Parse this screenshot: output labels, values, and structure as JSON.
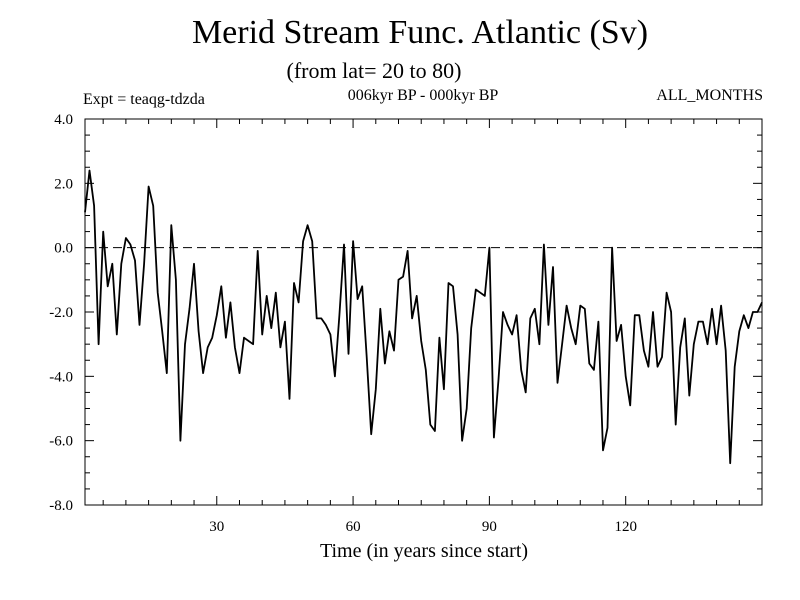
{
  "header": {
    "title": "Merid Stream Func. Atlantic (Sv)",
    "subtitle": "(from lat= 20 to 80)",
    "expt": "Expt = teaqg-tdzda",
    "period": "006kyr BP - 000kyr BP",
    "months": "ALL_MONTHS"
  },
  "chart_data": {
    "type": "line",
    "title": "Merid Stream Func. Atlantic (Sv)",
    "subtitle": "(from lat= 20 to 80)",
    "xlabel": "Time (in years since start)",
    "ylabel": "",
    "xlim": [
      1,
      150
    ],
    "ylim": [
      -8,
      4
    ],
    "xticks": [
      30,
      60,
      90,
      120
    ],
    "xtick_labels": [
      "30",
      "60",
      "90",
      "120"
    ],
    "yticks": [
      4,
      2,
      0,
      -2,
      -4,
      -6,
      -8
    ],
    "ytick_labels": [
      "4.0",
      "2.0",
      "0.0",
      "-2.0",
      "-4.0",
      "-6.0",
      "-8.0"
    ],
    "reference_line": {
      "y": 0,
      "style": "dashed"
    },
    "grid": false,
    "series": [
      {
        "x": [
          1,
          2,
          3,
          4,
          5,
          6,
          7,
          8,
          9,
          10,
          11,
          12,
          13,
          14,
          15,
          16,
          17,
          18,
          19,
          20,
          21,
          22,
          23,
          24,
          25,
          26,
          27,
          28,
          29,
          30,
          31,
          32,
          33,
          34,
          35,
          36,
          37,
          38,
          39,
          40,
          41,
          42,
          43,
          44,
          45,
          46,
          47,
          48,
          49,
          50,
          51,
          52,
          53,
          54,
          55,
          56,
          57,
          58,
          59,
          60,
          61,
          62,
          63,
          64,
          65,
          66,
          67,
          68,
          69,
          70,
          71,
          72,
          73,
          74,
          75,
          76,
          77,
          78,
          79,
          80,
          81,
          82,
          83,
          84,
          85,
          86,
          87,
          88,
          89,
          90,
          91,
          92,
          93,
          94,
          95,
          96,
          97,
          98,
          99,
          100,
          101,
          102,
          103,
          104,
          105,
          106,
          107,
          108,
          109,
          110,
          111,
          112,
          113,
          114,
          115,
          116,
          117,
          118,
          119,
          120,
          121,
          122,
          123,
          124,
          125,
          126,
          127,
          128,
          129,
          130,
          131,
          132,
          133,
          134,
          135,
          136,
          137,
          138,
          139,
          140,
          141,
          142,
          143,
          144,
          145,
          146,
          147,
          148,
          149,
          150
        ],
        "values": [
          1.1,
          2.4,
          1.3,
          -3.0,
          0.5,
          -1.2,
          -0.5,
          -2.7,
          -0.5,
          0.3,
          0.1,
          -0.4,
          -2.4,
          -0.5,
          1.9,
          1.3,
          -1.4,
          -2.6,
          -3.9,
          0.7,
          -1.0,
          -6.0,
          -3.0,
          -1.9,
          -0.5,
          -2.6,
          -3.9,
          -3.1,
          -2.8,
          -2.1,
          -1.2,
          -2.8,
          -1.7,
          -3.1,
          -3.9,
          -2.8,
          -2.9,
          -3.0,
          -0.1,
          -2.7,
          -1.5,
          -2.5,
          -1.4,
          -3.1,
          -2.3,
          -4.7,
          -1.1,
          -1.7,
          0.2,
          0.7,
          0.2,
          -2.2,
          -2.2,
          -2.4,
          -2.7,
          -4.0,
          -2.1,
          0.1,
          -3.3,
          0.2,
          -1.6,
          -1.2,
          -3.4,
          -5.8,
          -4.4,
          -1.9,
          -3.6,
          -2.6,
          -3.2,
          -1.0,
          -0.9,
          -0.1,
          -2.2,
          -1.5,
          -2.9,
          -3.8,
          -5.5,
          -5.7,
          -2.8,
          -4.4,
          -1.1,
          -1.2,
          -2.7,
          -6.0,
          -5.0,
          -2.5,
          -1.3,
          -1.4,
          -1.5,
          0.0,
          -5.9,
          -4.1,
          -2.0,
          -2.4,
          -2.7,
          -2.1,
          -3.8,
          -4.5,
          -2.2,
          -1.9,
          -3.0,
          0.1,
          -2.4,
          -0.6,
          -4.2,
          -3.0,
          -1.8,
          -2.5,
          -3.0,
          -1.8,
          -1.9,
          -3.6,
          -3.8,
          -2.3,
          -6.3,
          -5.6,
          0.0,
          -2.9,
          -2.4,
          -4.0,
          -4.9,
          -2.1,
          -2.1,
          -3.2,
          -3.7,
          -2.0,
          -3.7,
          -3.4,
          -1.4,
          -2.0,
          -5.5,
          -3.1,
          -2.2,
          -4.6,
          -3.0,
          -2.3,
          -2.3,
          -3.0,
          -1.9,
          -3.0,
          -1.8,
          -3.2,
          -6.7,
          -3.7,
          -2.6,
          -2.1,
          -2.5,
          -2.0,
          -2.0,
          -1.7
        ]
      }
    ]
  }
}
